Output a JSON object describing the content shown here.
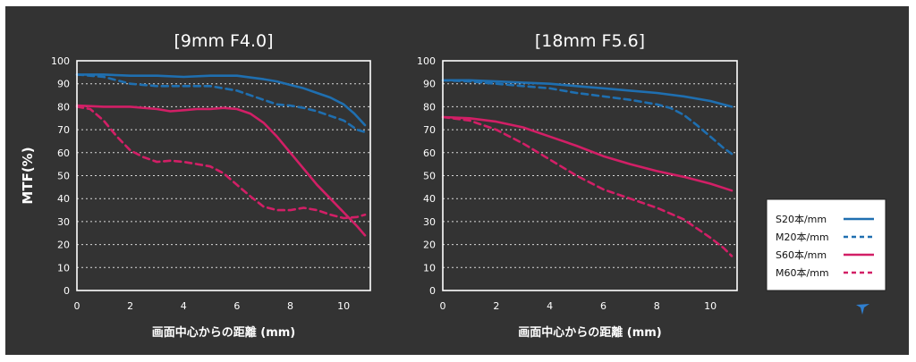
{
  "colors": {
    "background": "#333333",
    "axis": "#ffffff",
    "grid": "#d9d9d9",
    "text": "#ffffff",
    "series_20": "#1f6fb0",
    "series_60": "#d21f66"
  },
  "shared": {
    "ylabel": "MTF(%)",
    "xlabel": "画面中心からの距離 (mm)"
  },
  "legend": {
    "items": [
      {
        "label": "S20本/mm",
        "color": "#1f6fb0",
        "dash": "solid"
      },
      {
        "label": "M20本/mm",
        "color": "#1f6fb0",
        "dash": "dashed"
      },
      {
        "label": "S60本/mm",
        "color": "#d21f66",
        "dash": "solid"
      },
      {
        "label": "M60本/mm",
        "color": "#d21f66",
        "dash": "dashed"
      }
    ]
  },
  "chart_data": [
    {
      "type": "line",
      "title": "[9mm F4.0]",
      "xlabel": "画面中心からの距離 (mm)",
      "ylabel": "MTF(%)",
      "xlim": [
        0,
        11
      ],
      "ylim": [
        0,
        100
      ],
      "xticks": [
        0,
        2,
        4,
        6,
        8,
        10
      ],
      "yticks": [
        0,
        10,
        20,
        30,
        40,
        50,
        60,
        70,
        80,
        90,
        100
      ],
      "grid": "horizontal dotted",
      "series": [
        {
          "name": "S20本/mm",
          "color": "#1f6fb0",
          "dash": "solid",
          "x": [
            0,
            1,
            2,
            3,
            4,
            5,
            6,
            7,
            7.5,
            8,
            8.5,
            9,
            9.5,
            10,
            10.4,
            10.8
          ],
          "y": [
            94,
            94,
            93.5,
            93.5,
            93,
            93.5,
            93.5,
            92,
            91,
            89.5,
            88,
            86,
            84,
            81,
            77,
            72
          ]
        },
        {
          "name": "M20本/mm",
          "color": "#1f6fb0",
          "dash": "dashed",
          "x": [
            0,
            1,
            2,
            3,
            4,
            5,
            6,
            7,
            7.5,
            8,
            8.5,
            9,
            9.5,
            10,
            10.5,
            10.8
          ],
          "y": [
            94,
            93,
            90,
            89,
            89,
            89,
            87,
            83,
            81,
            80.5,
            79.5,
            78,
            76,
            74,
            70,
            69
          ]
        },
        {
          "name": "S60本/mm",
          "color": "#d21f66",
          "dash": "solid",
          "x": [
            0,
            1,
            2,
            3,
            3.5,
            4,
            4.5,
            5,
            5.5,
            6,
            6.5,
            7,
            7.5,
            8,
            8.5,
            9,
            9.5,
            10,
            10.5,
            10.8
          ],
          "y": [
            80.5,
            80,
            80,
            79,
            78,
            78.5,
            79,
            79,
            79.5,
            79,
            77,
            73,
            67,
            60,
            53,
            46,
            40,
            34,
            28,
            24
          ]
        },
        {
          "name": "M60本/mm",
          "color": "#d21f66",
          "dash": "dashed",
          "x": [
            0,
            0.5,
            1,
            1.5,
            2,
            2.5,
            3,
            3.5,
            4,
            4.5,
            5,
            5.5,
            6,
            6.5,
            7,
            7.5,
            8,
            8.5,
            9,
            9.5,
            10,
            10.5,
            10.8
          ],
          "y": [
            80,
            79,
            74,
            67,
            61,
            58,
            56,
            56.5,
            56,
            55,
            54,
            51,
            46,
            41,
            36.5,
            35,
            35,
            36,
            35,
            33,
            31.5,
            32,
            33
          ]
        }
      ]
    },
    {
      "type": "line",
      "title": "[18mm F5.6]",
      "xlabel": "画面中心からの距離 (mm)",
      "ylabel": "",
      "xlim": [
        0,
        11
      ],
      "ylim": [
        0,
        100
      ],
      "xticks": [
        0,
        2,
        4,
        6,
        8,
        10
      ],
      "yticks": [
        0,
        10,
        20,
        30,
        40,
        50,
        60,
        70,
        80,
        90,
        100
      ],
      "grid": "horizontal dotted",
      "series": [
        {
          "name": "S20本/mm",
          "color": "#1f6fb0",
          "dash": "solid",
          "x": [
            0,
            1,
            2,
            3,
            4,
            5,
            6,
            7,
            8,
            9,
            10,
            10.8
          ],
          "y": [
            91.5,
            91.5,
            91,
            90.5,
            90,
            89,
            88,
            87,
            86,
            84.5,
            82.5,
            80
          ]
        },
        {
          "name": "M20本/mm",
          "color": "#1f6fb0",
          "dash": "dashed",
          "x": [
            0,
            1,
            2,
            3,
            4,
            5,
            6,
            7,
            8,
            8.5,
            9,
            9.5,
            10,
            10.5,
            10.8
          ],
          "y": [
            91.5,
            91,
            90,
            89,
            88,
            86,
            84.5,
            83,
            81,
            79.5,
            76.5,
            72,
            67,
            62,
            59.5
          ]
        },
        {
          "name": "S60本/mm",
          "color": "#d21f66",
          "dash": "solid",
          "x": [
            0,
            1,
            2,
            3,
            4,
            5,
            6,
            7,
            8,
            9,
            10,
            10.8
          ],
          "y": [
            75.5,
            75,
            73.5,
            71,
            67,
            63,
            58.5,
            55,
            52,
            49.5,
            46.5,
            43.5
          ]
        },
        {
          "name": "M60本/mm",
          "color": "#d21f66",
          "dash": "dashed",
          "x": [
            0,
            1,
            2,
            3,
            4,
            5,
            6,
            7,
            8,
            9,
            9.5,
            10,
            10.5,
            10.8
          ],
          "y": [
            75.5,
            74,
            70,
            64,
            57,
            50,
            44,
            40,
            36,
            31,
            27,
            23,
            18.5,
            15
          ]
        }
      ]
    }
  ]
}
